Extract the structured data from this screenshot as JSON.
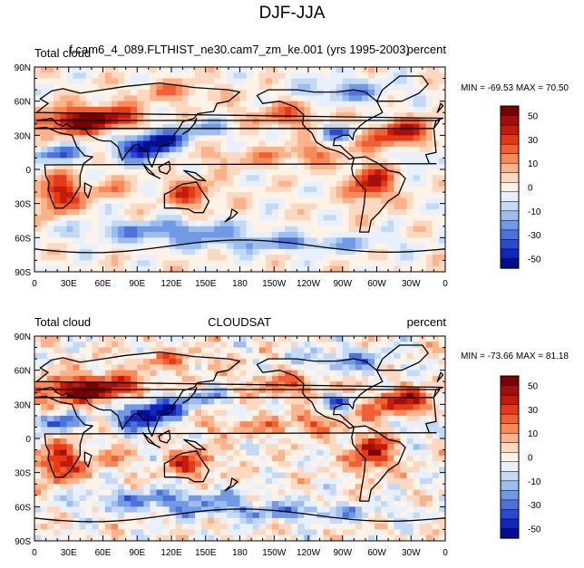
{
  "figure": {
    "title": "DJF-JJA"
  },
  "axes": {
    "lat_labels": [
      "90N",
      "60N",
      "30N",
      "0",
      "30S",
      "60S",
      "90S"
    ],
    "lon_labels": [
      "0",
      "30E",
      "60E",
      "90E",
      "120E",
      "150E",
      "180",
      "150W",
      "120W",
      "90W",
      "60W",
      "30W",
      "0"
    ]
  },
  "colorbar": {
    "tick_labels": [
      "50",
      "30",
      "10",
      "0",
      "-10",
      "-30",
      "-50"
    ],
    "colors": [
      "#780000",
      "#a30f0f",
      "#c41c0c",
      "#e53a16",
      "#f25f34",
      "#f88a5a",
      "#fbb38b",
      "#fdd8c0",
      "#fff3e8",
      "#e7f0fb",
      "#c4d9f4",
      "#9cbdee",
      "#7299e4",
      "#4e72dc",
      "#2c49d2",
      "#1226bd",
      "#030d8f"
    ]
  },
  "panels": [
    {
      "left_label": "Total cloud",
      "center_label": "f.cam6_4_089.FLTHIST_ne30.cam7_zm_ke.001 (yrs 1995-2003)",
      "right_label": "percent",
      "minmax_text": "MIN = -69.53 MAX =  70.50"
    },
    {
      "left_label": "Total cloud",
      "center_label": "CLOUDSAT",
      "right_label": "percent",
      "minmax_text": "MIN = -73.66 MAX =  81.18"
    }
  ]
}
